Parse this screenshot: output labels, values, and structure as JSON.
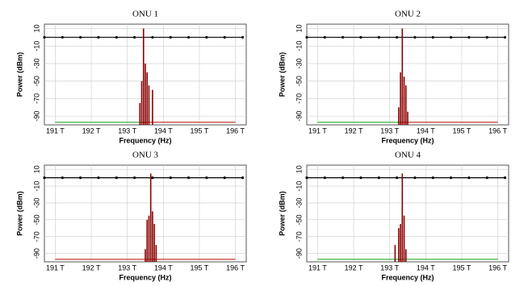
{
  "chart_data": [
    {
      "type": "stem",
      "title": "ONU 1",
      "y_label": "Power (dBm)",
      "x_label": "Frequency (Hz)",
      "xlim": [
        190700000000000,
        196300000000000
      ],
      "ylim": [
        -100,
        15
      ],
      "grid": true,
      "xticks": [
        {
          "value": 191000000000000,
          "label": "191 T"
        },
        {
          "value": 192000000000000,
          "label": "192 T"
        },
        {
          "value": 193000000000000,
          "label": "193 T"
        },
        {
          "value": 194000000000000,
          "label": "194 T"
        },
        {
          "value": 195000000000000,
          "label": "195 T"
        },
        {
          "value": 196000000000000,
          "label": "196 T"
        }
      ],
      "yticks": [
        10,
        -10,
        -30,
        -50,
        -70,
        -90
      ],
      "series": [
        {
          "mode": "line",
          "markers": true,
          "color": "#000000",
          "x": [
            190700000000000,
            191200000000000,
            191700000000000,
            192200000000000,
            192700000000000,
            193200000000000,
            193700000000000,
            194200000000000,
            194700000000000,
            195200000000000,
            195700000000000,
            196200000000000
          ],
          "values": [
            0,
            0,
            0,
            0,
            0,
            0,
            0,
            0,
            0,
            0,
            0,
            0
          ]
        },
        {
          "mode": "line",
          "markers": false,
          "color": "#3cb043",
          "x": [
            191000000000000,
            193400000000000
          ],
          "values": [
            -97,
            -97
          ]
        },
        {
          "mode": "line",
          "markers": false,
          "color": "#c0392b",
          "x": [
            193400000000000,
            196000000000000
          ],
          "values": [
            -97,
            -97
          ]
        },
        {
          "mode": "stem",
          "color": "#8b0000",
          "x": [
            193350000000000,
            193400000000000,
            193450000000000,
            193500000000000,
            193550000000000,
            193600000000000,
            193700000000000
          ],
          "values": [
            -75,
            -50,
            10,
            -30,
            -40,
            -55,
            -60
          ]
        }
      ]
    },
    {
      "type": "stem",
      "title": "ONU 2",
      "y_label": "Power (dBm)",
      "x_label": "Frequency (Hz)",
      "xlim": [
        190700000000000,
        196300000000000
      ],
      "ylim": [
        -100,
        15
      ],
      "grid": true,
      "xticks": [
        {
          "value": 191000000000000,
          "label": "191 T"
        },
        {
          "value": 192000000000000,
          "label": "192 T"
        },
        {
          "value": 193000000000000,
          "label": "193 T"
        },
        {
          "value": 194000000000000,
          "label": "194 T"
        },
        {
          "value": 195000000000000,
          "label": "195 T"
        },
        {
          "value": 196000000000000,
          "label": "196 T"
        }
      ],
      "yticks": [
        10,
        -10,
        -30,
        -50,
        -70,
        -90
      ],
      "series": [
        {
          "mode": "line",
          "markers": true,
          "color": "#000000",
          "x": [
            190700000000000,
            191200000000000,
            191700000000000,
            192200000000000,
            192700000000000,
            193200000000000,
            193700000000000,
            194200000000000,
            194700000000000,
            195200000000000,
            195700000000000,
            196200000000000
          ],
          "values": [
            0,
            0,
            0,
            0,
            0,
            0,
            0,
            0,
            0,
            0,
            0,
            0
          ]
        },
        {
          "mode": "line",
          "markers": false,
          "color": "#3cb043",
          "x": [
            191000000000000,
            193300000000000
          ],
          "values": [
            -97,
            -97
          ]
        },
        {
          "mode": "line",
          "markers": false,
          "color": "#c0392b",
          "x": [
            193300000000000,
            196000000000000
          ],
          "values": [
            -97,
            -97
          ]
        },
        {
          "mode": "stem",
          "color": "#8b0000",
          "x": [
            193250000000000,
            193300000000000,
            193350000000000,
            193400000000000,
            193450000000000,
            193500000000000
          ],
          "values": [
            -80,
            -40,
            10,
            -45,
            -55,
            -85
          ]
        }
      ]
    },
    {
      "type": "stem",
      "title": "ONU 3",
      "y_label": "Power (dBm)",
      "x_label": "Frequency (Hz)",
      "xlim": [
        190700000000000,
        196300000000000
      ],
      "ylim": [
        -100,
        15
      ],
      "grid": true,
      "xticks": [
        {
          "value": 191000000000000,
          "label": "191 T"
        },
        {
          "value": 192000000000000,
          "label": "192 T"
        },
        {
          "value": 193000000000000,
          "label": "193 T"
        },
        {
          "value": 194000000000000,
          "label": "194 T"
        },
        {
          "value": 195000000000000,
          "label": "195 T"
        },
        {
          "value": 196000000000000,
          "label": "196 T"
        }
      ],
      "yticks": [
        10,
        -10,
        -30,
        -50,
        -70,
        -90
      ],
      "series": [
        {
          "mode": "line",
          "markers": true,
          "color": "#000000",
          "x": [
            190700000000000,
            191200000000000,
            191700000000000,
            192200000000000,
            192700000000000,
            193200000000000,
            193700000000000,
            194200000000000,
            194700000000000,
            195200000000000,
            195700000000000,
            196200000000000
          ],
          "values": [
            0,
            0,
            0,
            0,
            0,
            0,
            0,
            0,
            0,
            0,
            0,
            0
          ]
        },
        {
          "mode": "line",
          "markers": false,
          "color": "#c0392b",
          "x": [
            191000000000000,
            196000000000000
          ],
          "values": [
            -97,
            -97
          ]
        },
        {
          "mode": "stem",
          "color": "#8b0000",
          "x": [
            193500000000000,
            193550000000000,
            193600000000000,
            193650000000000,
            193700000000000,
            193750000000000,
            193800000000000
          ],
          "values": [
            -85,
            -50,
            -45,
            5,
            -40,
            -55,
            -80
          ]
        }
      ]
    },
    {
      "type": "stem",
      "title": "ONU 4",
      "y_label": "Power (dBm)",
      "x_label": "Frequency (Hz)",
      "xlim": [
        190700000000000,
        196300000000000
      ],
      "ylim": [
        -100,
        15
      ],
      "grid": true,
      "xticks": [
        {
          "value": 191000000000000,
          "label": "191 T"
        },
        {
          "value": 192000000000000,
          "label": "192 T"
        },
        {
          "value": 193000000000000,
          "label": "193 T"
        },
        {
          "value": 194000000000000,
          "label": "194 T"
        },
        {
          "value": 195000000000000,
          "label": "195 T"
        },
        {
          "value": 196000000000000,
          "label": "196 T"
        }
      ],
      "yticks": [
        10,
        -10,
        -30,
        -50,
        -70,
        -90
      ],
      "series": [
        {
          "mode": "line",
          "markers": true,
          "color": "#000000",
          "x": [
            190700000000000,
            191200000000000,
            191700000000000,
            192200000000000,
            192700000000000,
            193200000000000,
            193700000000000,
            194200000000000,
            194700000000000,
            195200000000000,
            195700000000000,
            196200000000000
          ],
          "values": [
            0,
            0,
            0,
            0,
            0,
            0,
            0,
            0,
            0,
            0,
            0,
            0
          ]
        },
        {
          "mode": "line",
          "markers": false,
          "color": "#3cb043",
          "x": [
            191000000000000,
            196000000000000
          ],
          "values": [
            -97,
            -97
          ]
        },
        {
          "mode": "stem",
          "color": "#8b0000",
          "x": [
            193150000000000,
            193250000000000,
            193300000000000,
            193350000000000,
            193400000000000,
            193450000000000
          ],
          "values": [
            -80,
            -60,
            -55,
            5,
            -45,
            -85
          ]
        }
      ]
    }
  ]
}
